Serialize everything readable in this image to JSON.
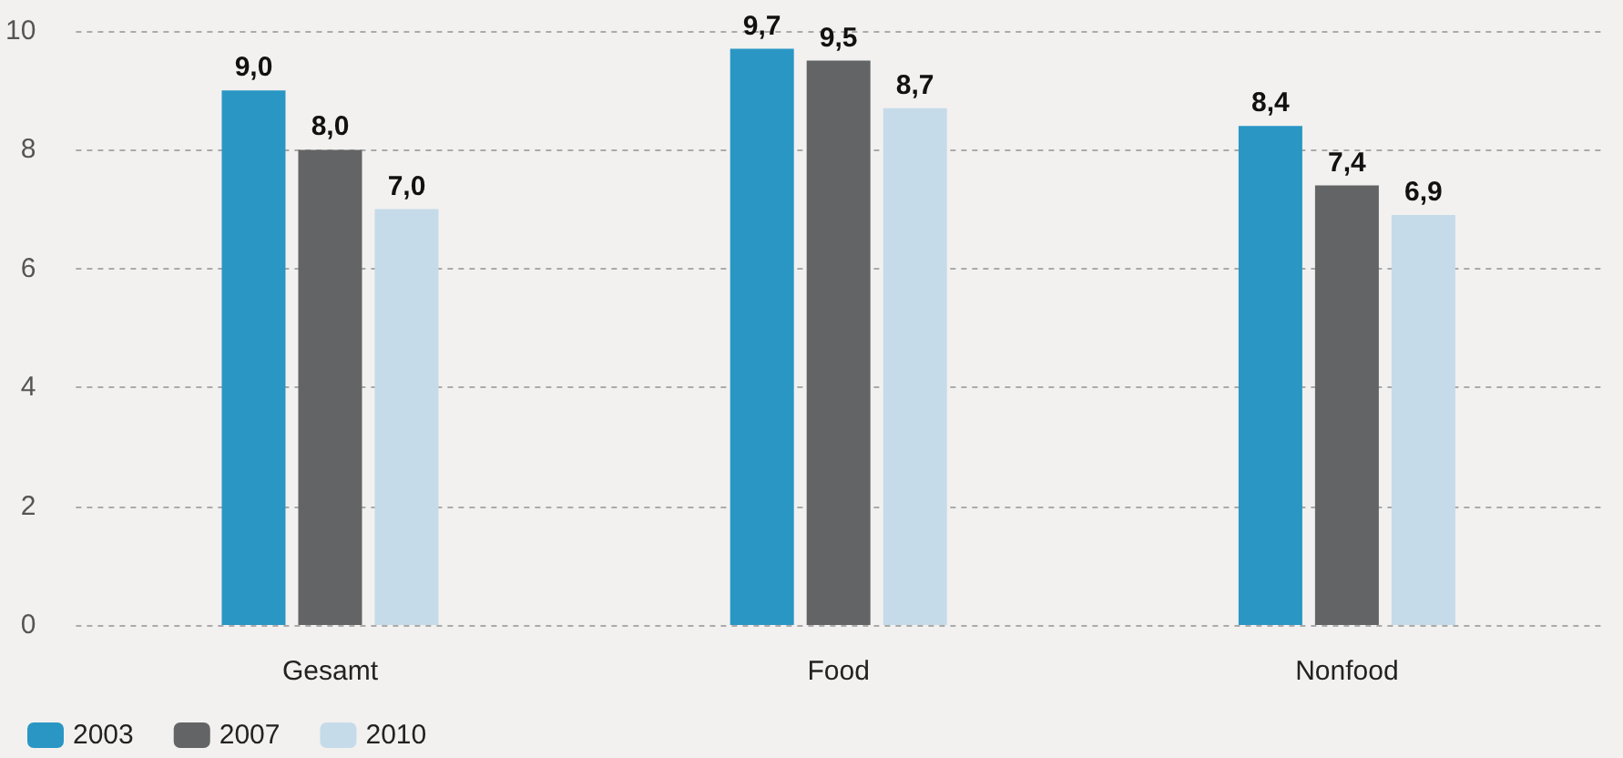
{
  "chart_data": {
    "type": "bar",
    "categories": [
      "Gesamt",
      "Food",
      "Nonfood"
    ],
    "series": [
      {
        "name": "2003",
        "color": "#2a96c4",
        "values": [
          9.0,
          9.7,
          8.4
        ],
        "value_labels": [
          "9,0",
          "9,7",
          "8,4"
        ]
      },
      {
        "name": "2007",
        "color": "#636466",
        "values": [
          8.0,
          9.5,
          7.4
        ],
        "value_labels": [
          "8,0",
          "9,5",
          "7,4"
        ]
      },
      {
        "name": "2010",
        "color": "#c5dbe9",
        "values": [
          7.0,
          8.7,
          6.9
        ],
        "value_labels": [
          "7,0",
          "8,7",
          "6,9"
        ]
      }
    ],
    "ylim": [
      0,
      10
    ],
    "yticks": [
      0,
      2,
      4,
      6,
      8,
      10
    ],
    "grid": "y",
    "legend": "bottom left"
  }
}
